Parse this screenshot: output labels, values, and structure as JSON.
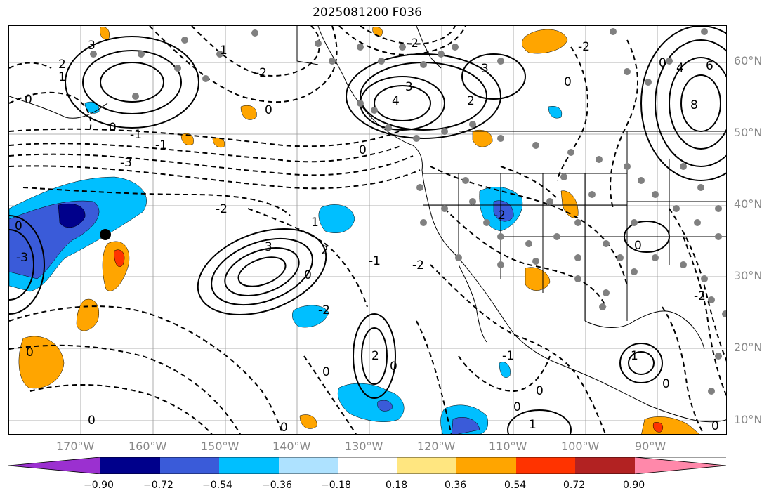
{
  "title": "2025081200 F036",
  "lat_labels": [
    "60°N",
    "50°N",
    "40°N",
    "30°N",
    "20°N",
    "10°N"
  ],
  "lon_labels": [
    "170°W",
    "160°W",
    "150°W",
    "140°W",
    "130°W",
    "120°W",
    "110°W",
    "100°W",
    "90°W"
  ],
  "colorbar": {
    "labels": [
      "−0.90",
      "−0.72",
      "−0.54",
      "−0.36",
      "−0.18",
      "0.18",
      "0.36",
      "0.54",
      "0.72",
      "0.90"
    ],
    "colors": [
      "#9b30d0",
      "#00008b",
      "#3a5bd9",
      "#00bfff",
      "#aee2ff",
      "#ffffff",
      "#ffe680",
      "#ffa500",
      "#ff3300",
      "#b22222",
      "#ff88aa"
    ]
  },
  "contour_labels": [
    "3",
    "2",
    "1",
    "0",
    "-1",
    "-2",
    "-3",
    "4",
    "6",
    "8"
  ],
  "shading": {
    "negative": "#3a5bd9",
    "negative_light": "#00bfff",
    "negative_dark": "#00008b",
    "positive": "#ffa500",
    "positive_strong": "#ff3300"
  }
}
